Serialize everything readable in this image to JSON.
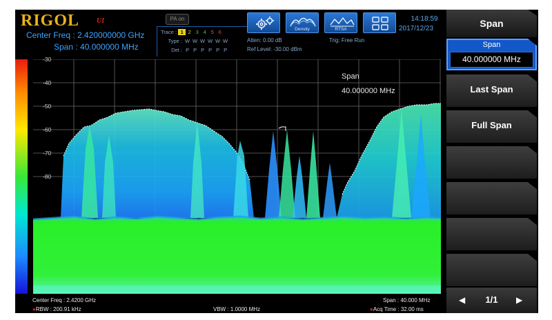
{
  "header": {
    "brand": "RIGOL",
    "brand_suffix": "UI",
    "center_freq_label": "Center Freq : 2.420000000 GHz",
    "span_label": "Span :   40.000000 MHz",
    "pa_badge": "PA on",
    "trace_label": "Trace :",
    "trace_numbers": [
      "1",
      "2",
      "3",
      "4",
      "5",
      "6"
    ],
    "type_label": "Type :",
    "type_values": [
      "W",
      "W",
      "W",
      "W",
      "W",
      "W"
    ],
    "det_label": "Det :",
    "det_values": [
      "P",
      "P",
      "P",
      "P",
      "P",
      "P"
    ],
    "atten": "Atten: 0.00 dB",
    "ref_level": "Ref Level: -30.00 dBm",
    "trig": "Trig: Free Run",
    "icons": [
      {
        "name": "settings-icon",
        "label": ""
      },
      {
        "name": "density-icon",
        "label": "Density"
      },
      {
        "name": "rtsa-icon",
        "label": "RTSA"
      },
      {
        "name": "layout-icon",
        "label": ""
      }
    ],
    "time": "14:18:59",
    "date": "2017/12/23"
  },
  "plot": {
    "y_ticks": [
      "-30",
      "-40",
      "-50",
      "-60",
      "-70",
      "-80"
    ],
    "span_annotation_label": "Span",
    "span_annotation_value": "40.000000 MHz"
  },
  "footer": {
    "center_freq": "Center Freq : 2.4200 GHz",
    "rbw": "RBW : 200.91 kHz",
    "vbw": "VBW : 1.0000 MHz",
    "span": "Span : 40.000 MHz",
    "acq_time": "Acq Time : 32.00 ms"
  },
  "softkeys": {
    "title": "Span",
    "active_caption": "Span",
    "active_value": "40.000000 MHz",
    "items": [
      "Last Span",
      "Full Span",
      "",
      "",
      "",
      "",
      ""
    ],
    "page": "1/1"
  },
  "colors": {
    "accent": "#1358c9",
    "brand": "#e8b21a",
    "label_blue": "#3ea3ff"
  }
}
